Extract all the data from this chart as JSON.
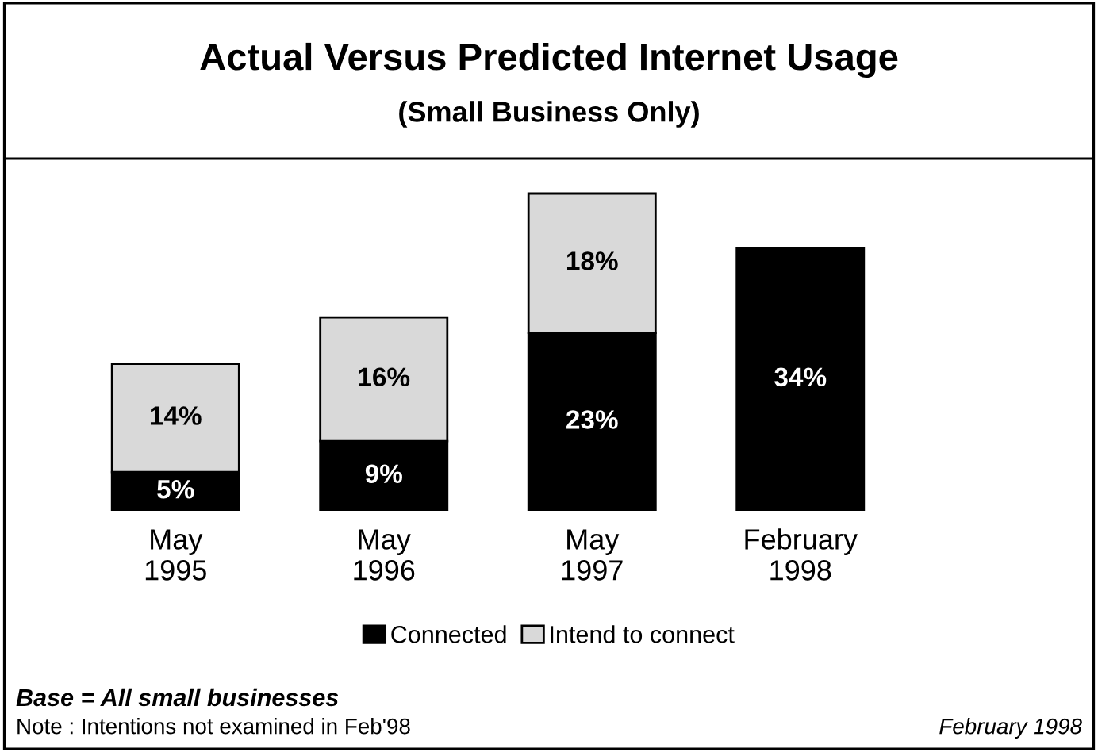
{
  "chart_data": {
    "type": "bar",
    "title": "Actual Versus Predicted Internet Usage",
    "subtitle": "(Small Business Only)",
    "categories": [
      "May\n1995",
      "May\n1996",
      "May\n1997",
      "February\n1998"
    ],
    "stacked": true,
    "legend": "bottom",
    "grid": false,
    "series": [
      {
        "name": "Connected",
        "color": "#000000",
        "values": [
          5,
          9,
          23,
          34
        ],
        "value_labels": [
          "5%",
          "9%",
          "23%",
          "34%"
        ]
      },
      {
        "name": "Intend to connect",
        "color": "#d9d9d9",
        "values": [
          14,
          16,
          18,
          null
        ],
        "value_labels": [
          "14%",
          "16%",
          "18%",
          null
        ]
      }
    ],
    "annotations": [
      "Base = All small businesses",
      "Note : Intentions not examined in Feb'98",
      "February 1998"
    ]
  }
}
